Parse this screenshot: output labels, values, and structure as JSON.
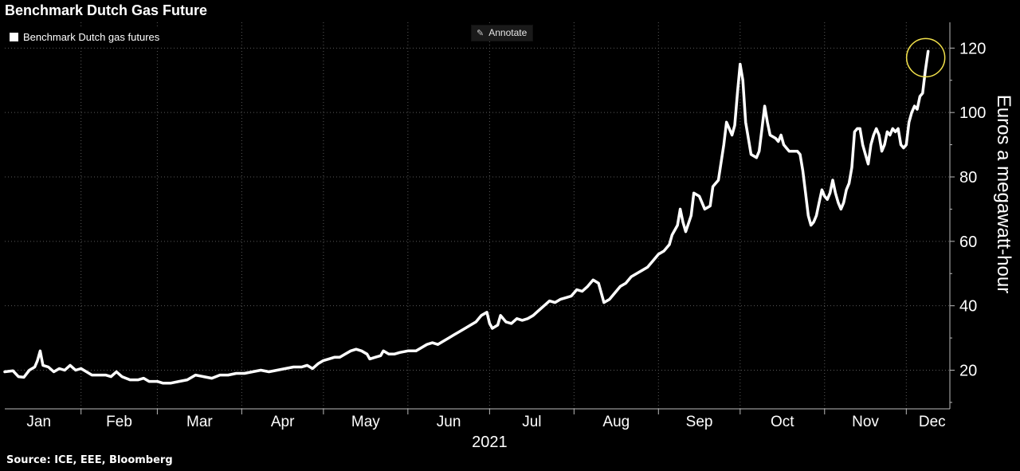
{
  "title": "Benchmark Dutch Gas Future",
  "source": "Source: ICE, EEE, Bloomberg",
  "annotate_label": "Annotate",
  "highlight_color": "#f2e14b",
  "chart_data": {
    "type": "line",
    "title": "Benchmark Dutch Gas Future",
    "ylabel": "Euros a megawatt-hour",
    "xlabel": "2021",
    "ylim": [
      8,
      128
    ],
    "yticks": [
      20,
      40,
      60,
      80,
      100,
      120
    ],
    "months": [
      "Jan",
      "Feb",
      "Mar",
      "Apr",
      "May",
      "Jun",
      "Jul",
      "Aug",
      "Sep",
      "Oct",
      "Nov",
      "Dec"
    ],
    "x_range_days": [
      0,
      347
    ],
    "legend_position": "top-left",
    "grid": true,
    "series": [
      {
        "name": "Benchmark Dutch gas futures",
        "color": "#ffffff",
        "points": [
          [
            0,
            19.5
          ],
          [
            3,
            19.8
          ],
          [
            5,
            18
          ],
          [
            7,
            17.8
          ],
          [
            9,
            20
          ],
          [
            11,
            21
          ],
          [
            12,
            23
          ],
          [
            13,
            26
          ],
          [
            14,
            21.5
          ],
          [
            16,
            21
          ],
          [
            18,
            19.5
          ],
          [
            20,
            20.5
          ],
          [
            22,
            20
          ],
          [
            24,
            21.5
          ],
          [
            26,
            20
          ],
          [
            28,
            20.5
          ],
          [
            30,
            19.5
          ],
          [
            32,
            18.5
          ],
          [
            35,
            18.5
          ],
          [
            37,
            18.5
          ],
          [
            39,
            18
          ],
          [
            41,
            19.5
          ],
          [
            43,
            18
          ],
          [
            46,
            17
          ],
          [
            49,
            17
          ],
          [
            51,
            17.5
          ],
          [
            53,
            16.5
          ],
          [
            56,
            16.5
          ],
          [
            58,
            16
          ],
          [
            61,
            16
          ],
          [
            64,
            16.5
          ],
          [
            67,
            17
          ],
          [
            70,
            18.5
          ],
          [
            73,
            18
          ],
          [
            76,
            17.5
          ],
          [
            79,
            18.5
          ],
          [
            82,
            18.5
          ],
          [
            85,
            19
          ],
          [
            88,
            19
          ],
          [
            91,
            19.5
          ],
          [
            94,
            20
          ],
          [
            97,
            19.5
          ],
          [
            100,
            20
          ],
          [
            103,
            20.5
          ],
          [
            106,
            21
          ],
          [
            109,
            21
          ],
          [
            111,
            21.5
          ],
          [
            113,
            20.5
          ],
          [
            115,
            22
          ],
          [
            117,
            23
          ],
          [
            119,
            23.5
          ],
          [
            121,
            24
          ],
          [
            123,
            24
          ],
          [
            125,
            25
          ],
          [
            127,
            26
          ],
          [
            129,
            26.5
          ],
          [
            131,
            26
          ],
          [
            133,
            25
          ],
          [
            134,
            23.5
          ],
          [
            136,
            24
          ],
          [
            138,
            24.5
          ],
          [
            139,
            26
          ],
          [
            141,
            25
          ],
          [
            143,
            25
          ],
          [
            145,
            25.5
          ],
          [
            148,
            26
          ],
          [
            151,
            26
          ],
          [
            153,
            27
          ],
          [
            155,
            28
          ],
          [
            157,
            28.5
          ],
          [
            159,
            28
          ],
          [
            161,
            29
          ],
          [
            163,
            30
          ],
          [
            165,
            31
          ],
          [
            167,
            32
          ],
          [
            169,
            33
          ],
          [
            171,
            34
          ],
          [
            173,
            35
          ],
          [
            175,
            37
          ],
          [
            177,
            38
          ],
          [
            178,
            34.5
          ],
          [
            179,
            33
          ],
          [
            181,
            34
          ],
          [
            182,
            37
          ],
          [
            184,
            35
          ],
          [
            186,
            34.5
          ],
          [
            188,
            36
          ],
          [
            190,
            35.5
          ],
          [
            192,
            36
          ],
          [
            194,
            37
          ],
          [
            196,
            38.5
          ],
          [
            198,
            40
          ],
          [
            200,
            41.5
          ],
          [
            202,
            41
          ],
          [
            204,
            42
          ],
          [
            206,
            42.5
          ],
          [
            208,
            43
          ],
          [
            210,
            45
          ],
          [
            212,
            44.5
          ],
          [
            214,
            46
          ],
          [
            216,
            48
          ],
          [
            218,
            47
          ],
          [
            219,
            44
          ],
          [
            220,
            41
          ],
          [
            222,
            42
          ],
          [
            224,
            44
          ],
          [
            226,
            46
          ],
          [
            228,
            47
          ],
          [
            230,
            49
          ],
          [
            232,
            50
          ],
          [
            234,
            51
          ],
          [
            236,
            52
          ],
          [
            238,
            54
          ],
          [
            240,
            56
          ],
          [
            242,
            57
          ],
          [
            244,
            59
          ],
          [
            245,
            62
          ],
          [
            247,
            65
          ],
          [
            248,
            70
          ],
          [
            249,
            66
          ],
          [
            250,
            63
          ],
          [
            252,
            68
          ],
          [
            253,
            75
          ],
          [
            255,
            74
          ],
          [
            257,
            70
          ],
          [
            259,
            71
          ],
          [
            260,
            77
          ],
          [
            262,
            79
          ],
          [
            264,
            90
          ],
          [
            265,
            97
          ],
          [
            266,
            95
          ],
          [
            267,
            93
          ],
          [
            268,
            96
          ],
          [
            269,
            106
          ],
          [
            270,
            115
          ],
          [
            271,
            110
          ],
          [
            272,
            97
          ],
          [
            273,
            92
          ],
          [
            274,
            87
          ],
          [
            276,
            86
          ],
          [
            277,
            88
          ],
          [
            278,
            95
          ],
          [
            279,
            102
          ],
          [
            280,
            97
          ],
          [
            281,
            93
          ],
          [
            283,
            92
          ],
          [
            284,
            91
          ],
          [
            285,
            93
          ],
          [
            286,
            90
          ],
          [
            288,
            88
          ],
          [
            290,
            88
          ],
          [
            291,
            88
          ],
          [
            292,
            87
          ],
          [
            293,
            82
          ],
          [
            294,
            75
          ],
          [
            295,
            68
          ],
          [
            296,
            65
          ],
          [
            297,
            66
          ],
          [
            298,
            68
          ],
          [
            299,
            72
          ],
          [
            300,
            76
          ],
          [
            301,
            74
          ],
          [
            302,
            73
          ],
          [
            303,
            75
          ],
          [
            304,
            79
          ],
          [
            305,
            75
          ],
          [
            306,
            72
          ],
          [
            307,
            70
          ],
          [
            308,
            72
          ],
          [
            309,
            76
          ],
          [
            310,
            78
          ],
          [
            311,
            83
          ],
          [
            312,
            94
          ],
          [
            313,
            95
          ],
          [
            314,
            95
          ],
          [
            315,
            90
          ],
          [
            316,
            87
          ],
          [
            317,
            84
          ],
          [
            318,
            90
          ],
          [
            319,
            93
          ],
          [
            320,
            95
          ],
          [
            321,
            93
          ],
          [
            322,
            88
          ],
          [
            323,
            90
          ],
          [
            324,
            94
          ],
          [
            325,
            93
          ],
          [
            326,
            95
          ],
          [
            327,
            94
          ],
          [
            328,
            95
          ],
          [
            329,
            90
          ],
          [
            330,
            89
          ],
          [
            331,
            90
          ],
          [
            332,
            97
          ],
          [
            333,
            100
          ],
          [
            334,
            102
          ],
          [
            335,
            101
          ],
          [
            336,
            105
          ],
          [
            337,
            106
          ],
          [
            338,
            113
          ],
          [
            339,
            119
          ]
        ]
      }
    ]
  }
}
